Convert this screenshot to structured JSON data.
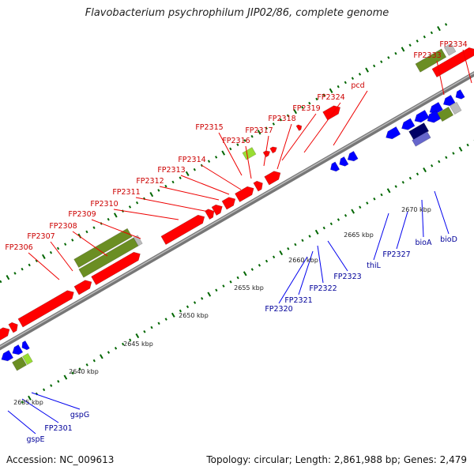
{
  "title": "Flavobacterium psychrophilum JIP02/86, complete genome",
  "footer": {
    "accession": "Accession: NC_009613",
    "stats": "Topology: circular; Length: 2,861,988 bp; Genes: 2,479"
  },
  "colors": {
    "forward_gene": "#ff0000",
    "reverse_gene": "#0000ff",
    "rna_gene": "#6b8e23",
    "pseudogene": "#bbbbbb",
    "misc_light": "#99dd33",
    "forward_label": "#cc0000",
    "reverse_label": "#000099",
    "kbp_tick": "#006600",
    "backbone": "#888888"
  },
  "kbp_ticks": [
    "2635 kbp",
    "2640 kbp",
    "2645 kbp",
    "2650 kbp",
    "2655 kbp",
    "2660 kbp",
    "2665 kbp",
    "2670 kbp"
  ],
  "forward_labels": [
    "FP2306",
    "FP2307",
    "FP2308",
    "FP2309",
    "FP2310",
    "FP2311",
    "FP2312",
    "FP2313",
    "FP2314",
    "FP2315",
    "FP2316",
    "FP2317",
    "FP2318",
    "FP2319",
    "FP2324",
    "pcd",
    "FP2333",
    "FP2334"
  ],
  "reverse_labels": [
    "gspE",
    "FP2301",
    "gspG",
    "FP2320",
    "FP2321",
    "FP2322",
    "FP2323",
    "thiL",
    "FP2327",
    "bioA",
    "bioD"
  ]
}
